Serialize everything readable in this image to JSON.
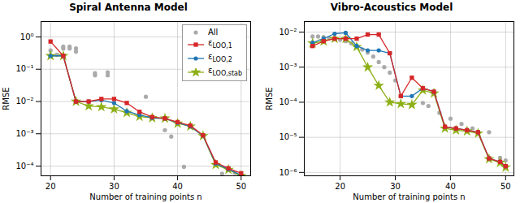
{
  "chart_data": [
    {
      "type": "line",
      "title": "Spiral Antenna Model",
      "xlabel": "Number of training points n",
      "ylabel": "RMSE",
      "log": "y",
      "grid": true,
      "legend": "upper right",
      "xlim": [
        18.5,
        51.5
      ],
      "xticks": [
        20,
        30,
        40,
        50
      ],
      "ylim": [
        5e-05,
        3.0
      ],
      "yticks": [
        {
          "value": 0.0001,
          "label": "10⁻⁴"
        },
        {
          "value": 0.001,
          "label": "10⁻³"
        },
        {
          "value": 0.01,
          "label": "10⁻²"
        },
        {
          "value": 0.1,
          "label": "10⁻¹"
        },
        {
          "value": 1,
          "label": "10⁰"
        }
      ],
      "x": [
        20,
        22,
        24,
        26,
        28,
        30,
        32,
        34,
        36,
        38,
        40,
        42,
        44,
        46,
        48,
        50
      ],
      "series": [
        {
          "name": "All",
          "type": "scatter",
          "marker": "circle",
          "color": "#aaaaaa",
          "x": [
            20,
            21,
            22,
            22,
            23,
            23,
            24,
            24,
            27,
            27,
            29,
            29,
            35,
            38,
            39,
            41,
            47,
            49,
            50
          ],
          "values": [
            0.38,
            0.28,
            0.44,
            0.5,
            0.44,
            0.5,
            0.44,
            0.35,
            0.065,
            0.075,
            0.065,
            0.08,
            0.014,
            0.0013,
            0.00082,
            9.5e-05,
            5.8e-05,
            6.2e-05,
            5.8e-05
          ]
        },
        {
          "name": "εLOO,1",
          "type": "line",
          "marker": "square",
          "color": "#d62728",
          "values": [
            0.72,
            0.26,
            0.01,
            0.01,
            0.012,
            0.012,
            0.009,
            0.0048,
            0.0033,
            0.003,
            0.0023,
            0.0018,
            0.0009,
            0.00013,
            8.5e-05,
            6e-05
          ]
        },
        {
          "name": "εLOO,2",
          "type": "line",
          "marker": "circle",
          "color": "#1f77b4",
          "values": [
            0.26,
            0.26,
            0.01,
            0.01,
            0.011,
            0.009,
            0.005,
            0.0038,
            0.0031,
            0.003,
            0.0022,
            0.0017,
            0.00088,
            0.00012,
            8e-05,
            5.2e-05
          ]
        },
        {
          "name": "εLOO,stab",
          "type": "line",
          "marker": "star",
          "color": "#8db016",
          "values": [
            0.26,
            0.26,
            0.01,
            0.0072,
            0.0068,
            0.0058,
            0.0045,
            0.0034,
            0.0031,
            0.003,
            0.0021,
            0.0017,
            0.00086,
            0.00011,
            7.8e-05,
            5e-05
          ]
        }
      ]
    },
    {
      "type": "line",
      "title": "Vibro-Acoustics Model",
      "xlabel": "Number of training points n",
      "ylabel": "RMSE",
      "log": "y",
      "grid": true,
      "xlim": [
        13.5,
        51.5
      ],
      "xticks": [
        20,
        30,
        40,
        50
      ],
      "ylim": [
        8e-07,
        0.02
      ],
      "yticks": [
        {
          "value": 1e-06,
          "label": "10⁻⁶"
        },
        {
          "value": 1e-05,
          "label": "10⁻⁵"
        },
        {
          "value": 0.0001,
          "label": "10⁻⁴"
        },
        {
          "value": 0.001,
          "label": "10⁻³"
        },
        {
          "value": 0.01,
          "label": "10⁻²"
        }
      ],
      "x": [
        15,
        17,
        19,
        21,
        23,
        25,
        27,
        29,
        31,
        33,
        35,
        37,
        39,
        41,
        43,
        45,
        47,
        49,
        50
      ],
      "series": [
        {
          "type": "scatter",
          "marker": "circle",
          "color": "#aaaaaa",
          "x": [
            15,
            16,
            17,
            18,
            19,
            20,
            21,
            22,
            23,
            24,
            25,
            26,
            27,
            28,
            29,
            30,
            35,
            36,
            38,
            40,
            42,
            44,
            47,
            49,
            50
          ],
          "values": [
            0.0075,
            0.0075,
            0.0072,
            0.0068,
            0.0065,
            0.006,
            0.0055,
            0.0048,
            0.004,
            0.0032,
            0.0026,
            0.002,
            0.0014,
            0.001,
            0.0007,
            0.00042,
            9.5e-05,
            7.8e-05,
            5e-05,
            3.4e-05,
            2.4e-05,
            1.8e-05,
            1.4e-05,
            2.6e-06,
            2.2e-06
          ]
        },
        {
          "type": "line",
          "marker": "square",
          "color": "#d62728",
          "values": [
            0.004,
            0.0055,
            0.0065,
            0.0065,
            0.0065,
            0.0085,
            0.0085,
            0.0025,
            0.00015,
            0.0005,
            0.00025,
            0.0002,
            2e-05,
            1.8e-05,
            1.6e-05,
            1.4e-05,
            2.5e-06,
            2e-06,
            1.5e-06
          ]
        },
        {
          "type": "line",
          "marker": "circle",
          "color": "#1f77b4",
          "values": [
            0.005,
            0.0065,
            0.009,
            0.0095,
            0.004,
            0.003,
            0.003,
            0.0025,
            0.00015,
            0.00015,
            0.00025,
            0.0002,
            2e-05,
            1.8e-05,
            1.6e-05,
            1.4e-05,
            2.5e-06,
            2e-06,
            1.5e-06
          ]
        },
        {
          "type": "line",
          "marker": "star",
          "color": "#8db016",
          "values": [
            0.0048,
            0.0055,
            0.0065,
            0.0065,
            0.0038,
            0.001,
            0.0003,
            0.0001,
            9e-05,
            8.5e-05,
            0.00022,
            0.00018,
            1.8e-05,
            1.6e-05,
            1.5e-05,
            1.3e-05,
            2.4e-06,
            1.9e-06,
            1.4e-06
          ]
        }
      ]
    }
  ]
}
